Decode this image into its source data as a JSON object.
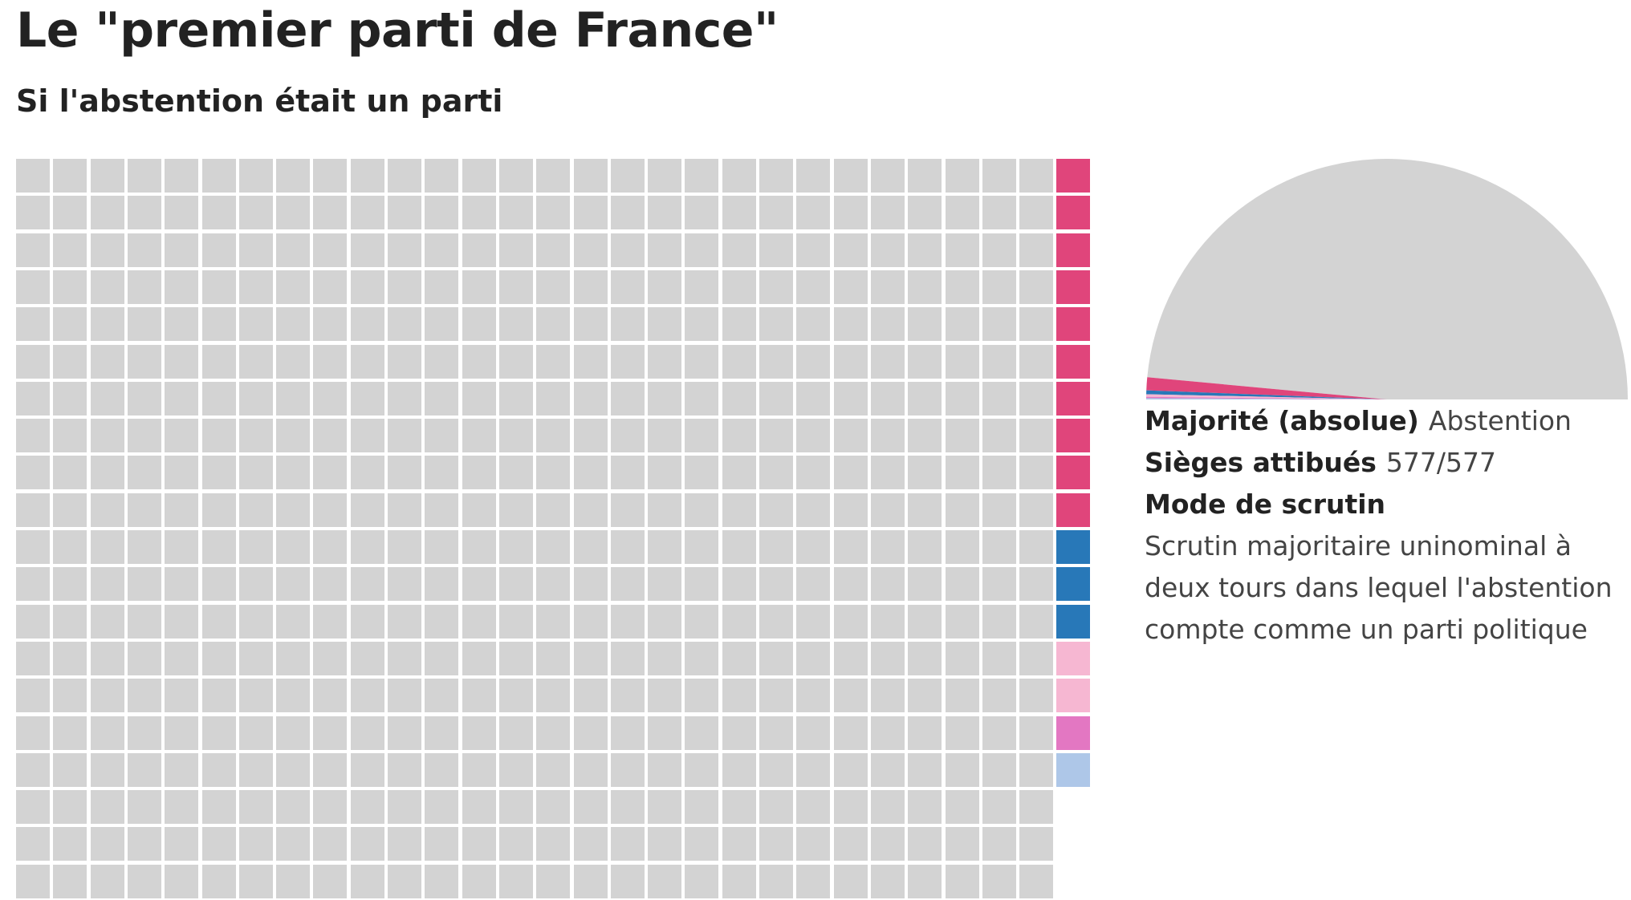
{
  "title": "Le \"premier parti de France\"",
  "subtitle": "Si l'abstention était un parti",
  "info": {
    "majority_label": "Majorité (absolue)",
    "majority_value": "Abstention",
    "seats_label": "Sièges attibués",
    "seats_value": "577/577",
    "mode_label": "Mode de scrutin",
    "mode_value": "Scrutin majoritaire uninominal à deux tours dans lequel l'abstention compte comme un parti politique"
  },
  "chart_data": {
    "type": "waffle",
    "total": 577,
    "groups": [
      {
        "color": "#d3d3d3",
        "value": 560
      },
      {
        "color": "#e0457b",
        "value": 10
      },
      {
        "color": "#2878b8",
        "value": 3
      },
      {
        "color": "#f6b7d2",
        "value": 2
      },
      {
        "color": "#e377c2",
        "value": 1
      },
      {
        "color": "#aec7e8",
        "value": 1
      }
    ]
  }
}
